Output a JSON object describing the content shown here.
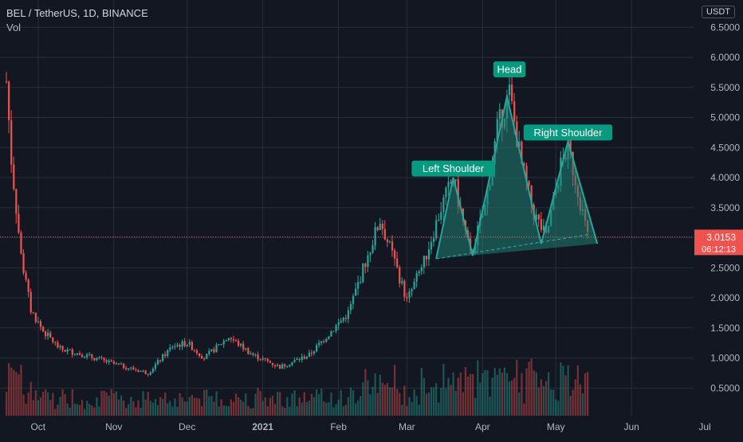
{
  "header": {
    "symbol": "BEL / TetherUS, 1D, BINANCE",
    "volume_label": "Vol",
    "currency": "USDT"
  },
  "price_tag": {
    "price": "3.0153",
    "countdown": "06:12:13"
  },
  "colors": {
    "background": "#131722",
    "up": "#26a69a",
    "down": "#ef5350",
    "pattern_fill": "#1f7f73",
    "label_bg": "#089981"
  },
  "chart_data": {
    "type": "candlestick",
    "title": "BEL / TetherUS, 1D, BINANCE",
    "y_ticks": [
      "0.5000",
      "1.0000",
      "1.5000",
      "2.0000",
      "2.5000",
      "3.0000",
      "3.5000",
      "4.0000",
      "4.5000",
      "5.0000",
      "5.5000",
      "6.0000",
      "6.5000"
    ],
    "x_ticks": [
      "Oct",
      "Nov",
      "Dec",
      "2021",
      "Feb",
      "Mar",
      "Apr",
      "May",
      "Jun",
      "Jul"
    ],
    "ylim": [
      0,
      6.8
    ],
    "grid": true,
    "last_price": 3.0153,
    "price_series": [
      {
        "x": "Sep 18",
        "y": 5.6
      },
      {
        "x": "Sep 20",
        "y": 4.3
      },
      {
        "x": "Sep 24",
        "y": 2.7
      },
      {
        "x": "Sep 28",
        "y": 1.8
      },
      {
        "x": "Oct 03",
        "y": 1.45
      },
      {
        "x": "Oct 10",
        "y": 1.15
      },
      {
        "x": "Oct 20",
        "y": 1.05
      },
      {
        "x": "Nov 01",
        "y": 0.9
      },
      {
        "x": "Nov 15",
        "y": 0.75
      },
      {
        "x": "Nov 25",
        "y": 1.2
      },
      {
        "x": "Dec 01",
        "y": 1.25
      },
      {
        "x": "Dec 08",
        "y": 1.0
      },
      {
        "x": "Dec 18",
        "y": 1.35
      },
      {
        "x": "Dec 28",
        "y": 1.05
      },
      {
        "x": "Jan 08",
        "y": 0.85
      },
      {
        "x": "Jan 20",
        "y": 1.05
      },
      {
        "x": "Jan 28",
        "y": 1.4
      },
      {
        "x": "Feb 05",
        "y": 1.75
      },
      {
        "x": "Feb 12",
        "y": 2.6
      },
      {
        "x": "Feb 18",
        "y": 3.3
      },
      {
        "x": "Feb 24",
        "y": 2.6
      },
      {
        "x": "Mar 01",
        "y": 1.95
      },
      {
        "x": "Mar 08",
        "y": 2.6
      },
      {
        "x": "Mar 15",
        "y": 3.5
      },
      {
        "x": "Mar 20",
        "y": 4.0
      },
      {
        "x": "Mar 27",
        "y": 2.7
      },
      {
        "x": "Apr 02",
        "y": 3.5
      },
      {
        "x": "Apr 07",
        "y": 4.8
      },
      {
        "x": "Apr 12",
        "y": 5.4
      },
      {
        "x": "Apr 17",
        "y": 4.2
      },
      {
        "x": "Apr 22",
        "y": 3.4
      },
      {
        "x": "Apr 27",
        "y": 3.0
      },
      {
        "x": "May 03",
        "y": 4.2
      },
      {
        "x": "May 06",
        "y": 4.5
      },
      {
        "x": "May 10",
        "y": 3.8
      },
      {
        "x": "May 14",
        "y": 3.0153
      }
    ],
    "volume_scale": "relative",
    "annotations": [
      {
        "text": "Left Shoulder",
        "x": "Mar 20",
        "y": 4.15
      },
      {
        "text": "Head",
        "x": "Apr 12",
        "y": 5.8
      },
      {
        "text": "Right Shoulder",
        "x": "May 06",
        "y": 4.75
      }
    ],
    "pattern": {
      "type": "head-and-shoulders",
      "points": [
        {
          "x": "Mar 13",
          "y": 2.65
        },
        {
          "x": "Mar 20",
          "y": 4.0
        },
        {
          "x": "Mar 28",
          "y": 2.7
        },
        {
          "x": "Apr 11",
          "y": 5.35
        },
        {
          "x": "Apr 25",
          "y": 2.9
        },
        {
          "x": "May 06",
          "y": 4.6
        },
        {
          "x": "May 18",
          "y": 2.9
        }
      ],
      "neckline": [
        {
          "x": "Mar 13",
          "y": 2.65
        },
        {
          "x": "May 14",
          "y": 3.05
        }
      ]
    }
  }
}
